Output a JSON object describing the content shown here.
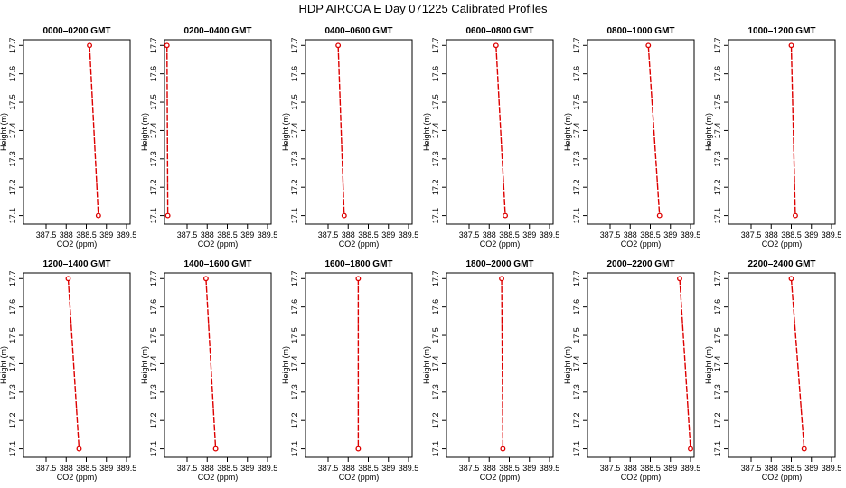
{
  "figure": {
    "title": "HDP  AIRCOA E  Day 071225  Calibrated Profiles",
    "line_color": "#dd0000",
    "point_color": "#dd0000"
  },
  "chart_data": [
    {
      "type": "line",
      "title": "0000–0200 GMT",
      "xlabel": "CO2 (ppm)",
      "ylabel": "Height (m)",
      "xlim": [
        386.9,
        389.6
      ],
      "ylim": [
        17.07,
        17.72
      ],
      "xticks": [
        "387.5",
        "388",
        "388.5",
        "389",
        "389.5"
      ],
      "yticks": [
        "17.1",
        "17.2",
        "17.3",
        "17.4",
        "17.5",
        "17.6",
        "17.7"
      ],
      "x": [
        388.58,
        388.8
      ],
      "y": [
        17.7,
        17.1
      ]
    },
    {
      "type": "line",
      "title": "0200–0400 GMT",
      "xlabel": "CO2 (ppm)",
      "ylabel": "Height (m)",
      "xlim": [
        386.9,
        389.6
      ],
      "ylim": [
        17.07,
        17.72
      ],
      "xticks": [
        "387.5",
        "388",
        "388.5",
        "389",
        "389.5"
      ],
      "yticks": [
        "17.1",
        "17.2",
        "17.3",
        "17.4",
        "17.5",
        "17.6",
        "17.7"
      ],
      "x": [
        387.0,
        387.02
      ],
      "y": [
        17.7,
        17.1
      ]
    },
    {
      "type": "line",
      "title": "0400–0600 GMT",
      "xlabel": "CO2 (ppm)",
      "ylabel": "Height (m)",
      "xlim": [
        386.9,
        389.6
      ],
      "ylim": [
        17.07,
        17.72
      ],
      "xticks": [
        "387.5",
        "388",
        "388.5",
        "389",
        "389.5"
      ],
      "yticks": [
        "17.1",
        "17.2",
        "17.3",
        "17.4",
        "17.5",
        "17.6",
        "17.7"
      ],
      "x": [
        387.75,
        387.9
      ],
      "y": [
        17.7,
        17.1
      ]
    },
    {
      "type": "line",
      "title": "0600–0800 GMT",
      "xlabel": "CO2 (ppm)",
      "ylabel": "Height (m)",
      "xlim": [
        386.9,
        389.6
      ],
      "ylim": [
        17.07,
        17.72
      ],
      "xticks": [
        "387.5",
        "388",
        "388.5",
        "389",
        "389.5"
      ],
      "yticks": [
        "17.1",
        "17.2",
        "17.3",
        "17.4",
        "17.5",
        "17.6",
        "17.7"
      ],
      "x": [
        388.17,
        388.4
      ],
      "y": [
        17.7,
        17.1
      ]
    },
    {
      "type": "line",
      "title": "0800–1000 GMT",
      "xlabel": "CO2 (ppm)",
      "ylabel": "Height (m)",
      "xlim": [
        386.9,
        389.6
      ],
      "ylim": [
        17.07,
        17.72
      ],
      "xticks": [
        "387.5",
        "388",
        "388.5",
        "389",
        "389.5"
      ],
      "yticks": [
        "17.1",
        "17.2",
        "17.3",
        "17.4",
        "17.5",
        "17.6",
        "17.7"
      ],
      "x": [
        388.45,
        388.73
      ],
      "y": [
        17.7,
        17.1
      ]
    },
    {
      "type": "line",
      "title": "1000–1200 GMT",
      "xlabel": "CO2 (ppm)",
      "ylabel": "Height (m)",
      "xlim": [
        386.9,
        389.6
      ],
      "ylim": [
        17.07,
        17.72
      ],
      "xticks": [
        "387.5",
        "388",
        "388.5",
        "389",
        "389.5"
      ],
      "yticks": [
        "17.1",
        "17.2",
        "17.3",
        "17.4",
        "17.5",
        "17.6",
        "17.7"
      ],
      "x": [
        388.5,
        388.6
      ],
      "y": [
        17.7,
        17.1
      ]
    },
    {
      "type": "line",
      "title": "1200–1400 GMT",
      "xlabel": "CO2 (ppm)",
      "ylabel": "Height (m)",
      "xlim": [
        386.9,
        389.6
      ],
      "ylim": [
        17.07,
        17.72
      ],
      "xticks": [
        "387.5",
        "388",
        "388.5",
        "389",
        "389.5"
      ],
      "yticks": [
        "17.1",
        "17.2",
        "17.3",
        "17.4",
        "17.5",
        "17.6",
        "17.7"
      ],
      "x": [
        388.05,
        388.32
      ],
      "y": [
        17.7,
        17.1
      ]
    },
    {
      "type": "line",
      "title": "1400–1600 GMT",
      "xlabel": "CO2 (ppm)",
      "ylabel": "Height (m)",
      "xlim": [
        386.9,
        389.6
      ],
      "ylim": [
        17.07,
        17.72
      ],
      "xticks": [
        "387.5",
        "388",
        "388.5",
        "389",
        "389.5"
      ],
      "yticks": [
        "17.1",
        "17.2",
        "17.3",
        "17.4",
        "17.5",
        "17.6",
        "17.7"
      ],
      "x": [
        387.97,
        388.21
      ],
      "y": [
        17.7,
        17.1
      ]
    },
    {
      "type": "line",
      "title": "1600–1800 GMT",
      "xlabel": "CO2 (ppm)",
      "ylabel": "Height (m)",
      "xlim": [
        386.9,
        389.6
      ],
      "ylim": [
        17.07,
        17.72
      ],
      "xticks": [
        "387.5",
        "388",
        "388.5",
        "389",
        "389.5"
      ],
      "yticks": [
        "17.1",
        "17.2",
        "17.3",
        "17.4",
        "17.5",
        "17.6",
        "17.7"
      ],
      "x": [
        388.25,
        388.25
      ],
      "y": [
        17.7,
        17.1
      ]
    },
    {
      "type": "line",
      "title": "1800–2000 GMT",
      "xlabel": "CO2 (ppm)",
      "ylabel": "Height (m)",
      "xlim": [
        386.9,
        389.6
      ],
      "ylim": [
        17.07,
        17.72
      ],
      "xticks": [
        "387.5",
        "388",
        "388.5",
        "389",
        "389.5"
      ],
      "yticks": [
        "17.1",
        "17.2",
        "17.3",
        "17.4",
        "17.5",
        "17.6",
        "17.7"
      ],
      "x": [
        388.31,
        388.34
      ],
      "y": [
        17.7,
        17.1
      ]
    },
    {
      "type": "line",
      "title": "2000–2200 GMT",
      "xlabel": "CO2 (ppm)",
      "ylabel": "Height (m)",
      "xlim": [
        386.9,
        389.6
      ],
      "ylim": [
        17.07,
        17.72
      ],
      "xticks": [
        "387.5",
        "388",
        "388.5",
        "389",
        "389.5"
      ],
      "yticks": [
        "17.1",
        "17.2",
        "17.3",
        "17.4",
        "17.5",
        "17.6",
        "17.7"
      ],
      "x": [
        389.23,
        389.5
      ],
      "y": [
        17.7,
        17.1
      ]
    },
    {
      "type": "line",
      "title": "2200–2400 GMT",
      "xlabel": "CO2 (ppm)",
      "ylabel": "Height (m)",
      "xlim": [
        386.9,
        389.6
      ],
      "ylim": [
        17.07,
        17.72
      ],
      "xticks": [
        "387.5",
        "388",
        "388.5",
        "389",
        "389.5"
      ],
      "yticks": [
        "17.1",
        "17.2",
        "17.3",
        "17.4",
        "17.5",
        "17.6",
        "17.7"
      ],
      "x": [
        388.5,
        388.82
      ],
      "y": [
        17.7,
        17.1
      ]
    }
  ]
}
